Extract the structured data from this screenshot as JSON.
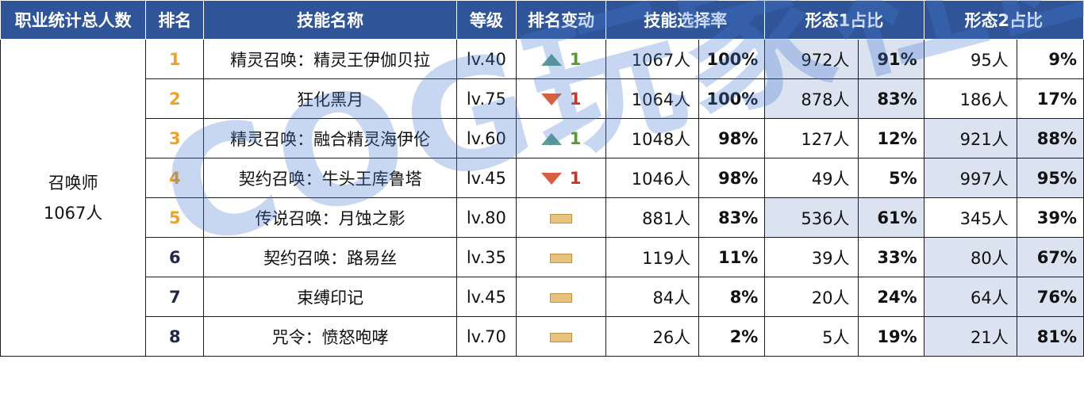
{
  "headers": {
    "total": "职业统计总人数",
    "rank": "排名",
    "skill": "技能名称",
    "level": "等级",
    "change": "排名变动",
    "rate": "技能选择率",
    "form1": "形态1占比",
    "form2": "形态2占比"
  },
  "summary": {
    "class_name": "召唤师",
    "total": "1067人"
  },
  "watermark": "COG玩家社区",
  "colors": {
    "header_bg": "#2f5598",
    "highlight": "#dbe3f1",
    "rank_orange": "#f0a023",
    "up": "#5f9e8b",
    "down": "#d75f43",
    "flat": "#e9c27e"
  },
  "rows": [
    {
      "rank": "1",
      "skill": "精灵召唤：精灵王伊伽贝拉",
      "level": "lv.40",
      "change_type": "up",
      "change": "1",
      "rate_count": "1067人",
      "rate_pct": "100%",
      "f1_count": "972人",
      "f1_pct": "91%",
      "f2_count": "95人",
      "f2_pct": "9%",
      "hl": "f1"
    },
    {
      "rank": "2",
      "skill": "狂化黑月",
      "level": "lv.75",
      "change_type": "down",
      "change": "1",
      "rate_count": "1064人",
      "rate_pct": "100%",
      "f1_count": "878人",
      "f1_pct": "83%",
      "f2_count": "186人",
      "f2_pct": "17%",
      "hl": "f1"
    },
    {
      "rank": "3",
      "skill": "精灵召唤：融合精灵海伊伦",
      "level": "lv.60",
      "change_type": "up",
      "change": "1",
      "rate_count": "1048人",
      "rate_pct": "98%",
      "f1_count": "127人",
      "f1_pct": "12%",
      "f2_count": "921人",
      "f2_pct": "88%",
      "hl": "f2"
    },
    {
      "rank": "4",
      "skill": "契约召唤：牛头王库鲁塔",
      "level": "lv.45",
      "change_type": "down",
      "change": "1",
      "rate_count": "1046人",
      "rate_pct": "98%",
      "f1_count": "49人",
      "f1_pct": "5%",
      "f2_count": "997人",
      "f2_pct": "95%",
      "hl": "f2"
    },
    {
      "rank": "5",
      "skill": "传说召唤：月蚀之影",
      "level": "lv.80",
      "change_type": "flat",
      "change": "",
      "rate_count": "881人",
      "rate_pct": "83%",
      "f1_count": "536人",
      "f1_pct": "61%",
      "f2_count": "345人",
      "f2_pct": "39%",
      "hl": "f1"
    },
    {
      "rank": "6",
      "skill": "契约召唤：路易丝",
      "level": "lv.35",
      "change_type": "flat",
      "change": "",
      "rate_count": "119人",
      "rate_pct": "11%",
      "f1_count": "39人",
      "f1_pct": "33%",
      "f2_count": "80人",
      "f2_pct": "67%",
      "hl": "f2"
    },
    {
      "rank": "7",
      "skill": "束缚印记",
      "level": "lv.45",
      "change_type": "flat",
      "change": "",
      "rate_count": "84人",
      "rate_pct": "8%",
      "f1_count": "20人",
      "f1_pct": "24%",
      "f2_count": "64人",
      "f2_pct": "76%",
      "hl": "f2"
    },
    {
      "rank": "8",
      "skill": "咒令：愤怒咆哮",
      "level": "lv.70",
      "change_type": "flat",
      "change": "",
      "rate_count": "26人",
      "rate_pct": "2%",
      "f1_count": "5人",
      "f1_pct": "19%",
      "f2_count": "21人",
      "f2_pct": "81%",
      "hl": "f2"
    }
  ]
}
